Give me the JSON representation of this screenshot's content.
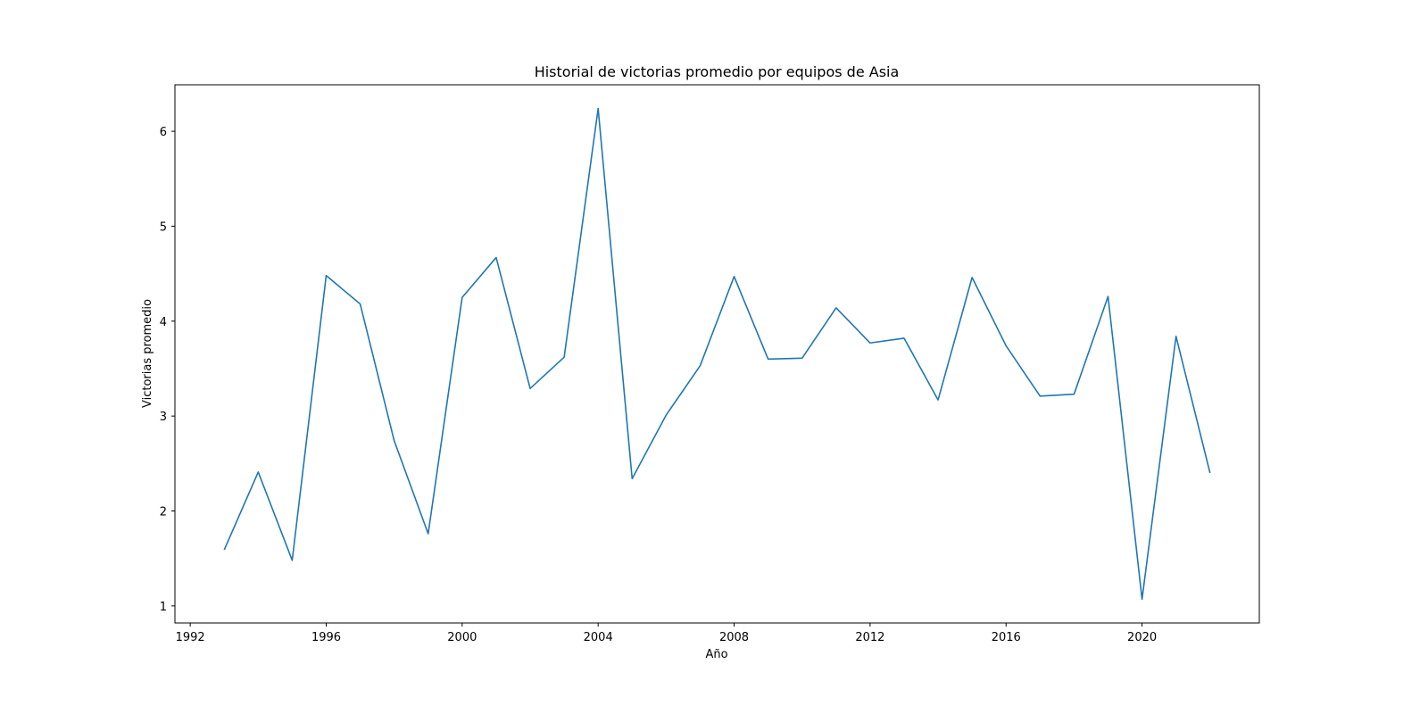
{
  "chart_data": {
    "type": "line",
    "title": "Historial de victorias promedio por equipos de Asia",
    "xlabel": "Año",
    "ylabel": "Victorias promedio",
    "xlim": [
      1991.55,
      2023.45
    ],
    "ylim": [
      0.82,
      6.49
    ],
    "xticks": [
      1992,
      1996,
      2000,
      2004,
      2008,
      2012,
      2016,
      2020
    ],
    "yticks": [
      1,
      2,
      3,
      4,
      5,
      6
    ],
    "grid": false,
    "legend": "none",
    "series": [
      {
        "color": "#1f77b4",
        "x": [
          1993,
          1994,
          1995,
          1996,
          1997,
          1998,
          1999,
          2000,
          2001,
          2002,
          2003,
          2004,
          2005,
          2006,
          2007,
          2008,
          2009,
          2010,
          2011,
          2012,
          2013,
          2014,
          2015,
          2016,
          2017,
          2018,
          2019,
          2020,
          2021,
          2022
        ],
        "y": [
          1.59,
          2.41,
          1.48,
          4.48,
          4.18,
          2.74,
          1.76,
          4.25,
          4.67,
          3.29,
          3.62,
          6.24,
          2.34,
          3.01,
          3.53,
          4.47,
          3.6,
          3.61,
          4.14,
          3.77,
          3.82,
          3.17,
          4.46,
          3.74,
          3.21,
          3.23,
          4.26,
          1.07,
          3.84,
          2.4
        ]
      }
    ]
  }
}
